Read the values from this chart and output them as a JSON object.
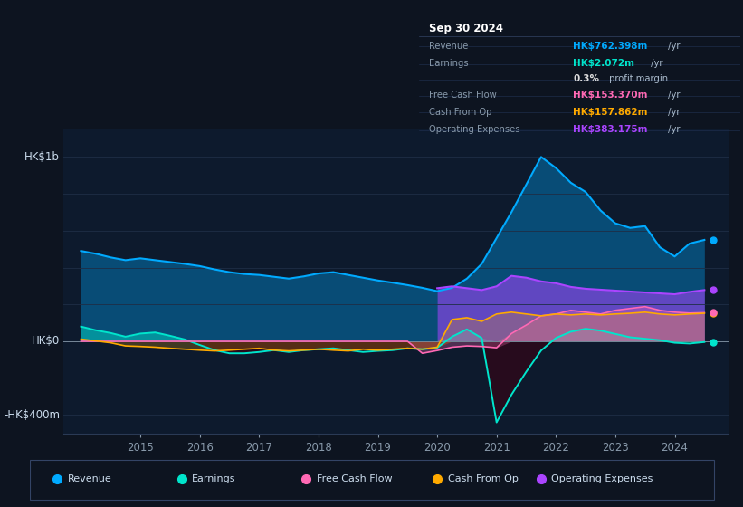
{
  "bg_color": "#0d1420",
  "plot_bg": "#0d1a2d",
  "ylim": [
    -500,
    1150
  ],
  "series_colors": {
    "Revenue": "#00aaff",
    "Earnings": "#00e5cc",
    "FreeCashFlow": "#ff69b4",
    "CashFromOp": "#ffaa00",
    "OperatingExpenses": "#aa44ff"
  },
  "legend_items": [
    "Revenue",
    "Earnings",
    "Free Cash Flow",
    "Cash From Op",
    "Operating Expenses"
  ],
  "legend_colors": [
    "#00aaff",
    "#00e5cc",
    "#ff69b4",
    "#ffaa00",
    "#aa44ff"
  ],
  "x_years": [
    2014.0,
    2014.25,
    2014.5,
    2014.75,
    2015.0,
    2015.25,
    2015.5,
    2015.75,
    2016.0,
    2016.25,
    2016.5,
    2016.75,
    2017.0,
    2017.25,
    2017.5,
    2017.75,
    2018.0,
    2018.25,
    2018.5,
    2018.75,
    2019.0,
    2019.25,
    2019.5,
    2019.75,
    2020.0,
    2020.25,
    2020.5,
    2020.75,
    2021.0,
    2021.25,
    2021.5,
    2021.75,
    2022.0,
    2022.25,
    2022.5,
    2022.75,
    2023.0,
    2023.25,
    2023.5,
    2023.75,
    2024.0,
    2024.25,
    2024.5
  ],
  "revenue": [
    490,
    475,
    455,
    440,
    450,
    440,
    430,
    420,
    408,
    390,
    375,
    365,
    360,
    350,
    340,
    352,
    368,
    375,
    360,
    345,
    330,
    318,
    305,
    290,
    272,
    290,
    340,
    420,
    560,
    700,
    850,
    1000,
    940,
    860,
    810,
    710,
    640,
    615,
    625,
    510,
    460,
    530,
    550
  ],
  "earnings": [
    80,
    60,
    45,
    25,
    42,
    48,
    30,
    10,
    -20,
    -48,
    -65,
    -65,
    -58,
    -48,
    -58,
    -48,
    -43,
    -38,
    -48,
    -58,
    -52,
    -48,
    -38,
    -43,
    -35,
    25,
    65,
    18,
    -440,
    -290,
    -165,
    -50,
    18,
    52,
    68,
    58,
    40,
    22,
    14,
    6,
    -8,
    -12,
    -4
  ],
  "free_cash_flow": [
    0,
    0,
    0,
    0,
    0,
    0,
    0,
    0,
    0,
    0,
    0,
    0,
    0,
    0,
    0,
    0,
    0,
    0,
    0,
    0,
    0,
    0,
    0,
    -65,
    -50,
    -32,
    -25,
    -28,
    -35,
    42,
    88,
    138,
    148,
    168,
    158,
    148,
    168,
    178,
    188,
    168,
    158,
    153,
    155
  ],
  "cash_from_op": [
    12,
    2,
    -8,
    -25,
    -28,
    -32,
    -38,
    -43,
    -48,
    -52,
    -48,
    -43,
    -38,
    -48,
    -52,
    -48,
    -43,
    -48,
    -52,
    -43,
    -48,
    -43,
    -38,
    -43,
    -32,
    118,
    128,
    108,
    148,
    158,
    148,
    138,
    148,
    143,
    148,
    143,
    148,
    152,
    158,
    148,
    143,
    148,
    152
  ],
  "operating_expenses": [
    0,
    0,
    0,
    0,
    0,
    0,
    0,
    0,
    0,
    0,
    0,
    0,
    0,
    0,
    0,
    0,
    0,
    0,
    0,
    0,
    0,
    0,
    0,
    0,
    288,
    298,
    288,
    278,
    298,
    355,
    345,
    325,
    315,
    295,
    285,
    280,
    275,
    270,
    265,
    260,
    255,
    268,
    278
  ],
  "xtick_years": [
    2015,
    2016,
    2017,
    2018,
    2019,
    2020,
    2021,
    2022,
    2023,
    2024
  ],
  "grid_color": "#1e2e45",
  "zero_line_color": "#778899",
  "hk1b_y": 1000,
  "hk0_y": 0,
  "hkm400_y": -400
}
